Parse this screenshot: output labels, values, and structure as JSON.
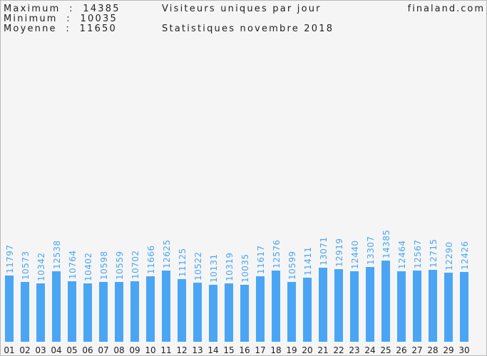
{
  "header": {
    "max_label": "Maximum  :  14385",
    "min_label": "Minimum  :  10035",
    "avg_label": "Moyenne  :  11650",
    "title": "Visiteurs uniques par jour",
    "subtitle": "Statistiques novembre 2018",
    "site": "finaland.com"
  },
  "colors": {
    "bar": "#4aa6f5",
    "bar_label": "#4aa6f5",
    "text": "#222222",
    "background": "#f5f5f5"
  },
  "chart_data": {
    "type": "bar",
    "title": "Visiteurs uniques par jour",
    "subtitle": "Statistiques novembre 2018",
    "xlabel": "",
    "ylabel": "",
    "categories": [
      "01",
      "02",
      "03",
      "04",
      "05",
      "06",
      "07",
      "08",
      "09",
      "10",
      "11",
      "12",
      "13",
      "14",
      "15",
      "16",
      "17",
      "18",
      "19",
      "20",
      "21",
      "22",
      "23",
      "24",
      "25",
      "26",
      "27",
      "28",
      "29",
      "30"
    ],
    "values": [
      11797,
      10573,
      10342,
      12538,
      10764,
      10402,
      10598,
      10559,
      10702,
      11666,
      12625,
      11125,
      10522,
      10131,
      10319,
      10035,
      11617,
      12576,
      10599,
      11411,
      13071,
      12919,
      12440,
      13307,
      14385,
      12464,
      12567,
      12715,
      12290,
      12426
    ],
    "ylim": [
      0,
      14385
    ],
    "grid": false,
    "legend": "none",
    "data_labels": "vertical above bars"
  }
}
